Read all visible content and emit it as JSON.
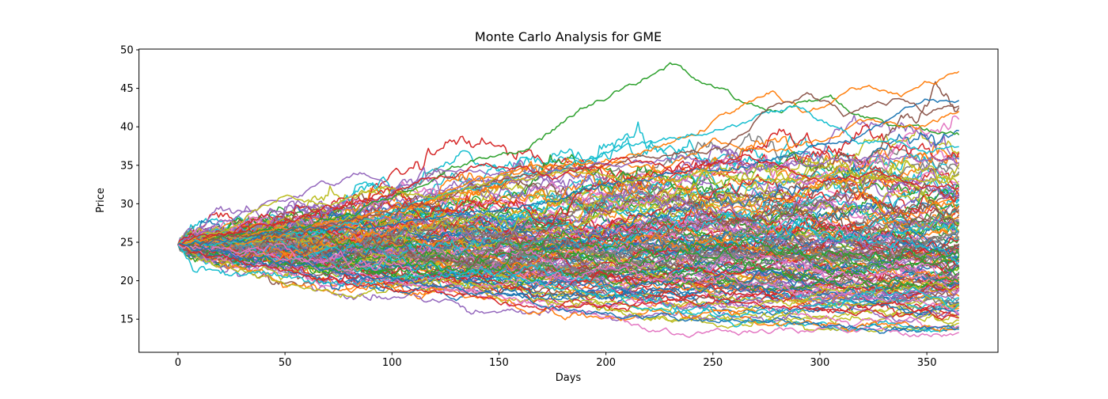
{
  "chart_data": {
    "type": "line",
    "title": "Monte Carlo Analysis for GME",
    "xlabel": "Days",
    "ylabel": "Price",
    "xlim": [
      -18.25,
      383.25
    ],
    "ylim": [
      10.7,
      50.1
    ],
    "xticks": [
      0,
      50,
      100,
      150,
      200,
      250,
      300,
      350
    ],
    "yticks": [
      15,
      20,
      25,
      30,
      35,
      40,
      45,
      50
    ],
    "grid": false,
    "legend": false,
    "days": 365,
    "start_price": 24.7,
    "num_paths": 162,
    "axis_color": "#000000",
    "background_color": "#ffffff",
    "color_cycle": [
      "#1f77b4",
      "#ff7f0e",
      "#2ca02c",
      "#d62728",
      "#9467bd",
      "#8c564b",
      "#e377c2",
      "#7f7f7f",
      "#bcbd22",
      "#17becf"
    ],
    "simulation": {
      "seed": 7,
      "background_paths": 150,
      "daily_volatility": 0.0125,
      "daily_drift": -8e-05,
      "reflect_low": 13.3,
      "reflect_high": 46.0,
      "noise_ar": 0.86,
      "noise_innovation": 0.5
    },
    "featured_paths": [
      {
        "name": "green-peak",
        "color": "#2ca02c",
        "points": [
          [
            0,
            24.7
          ],
          [
            30,
            26.2
          ],
          [
            60,
            27.2
          ],
          [
            100,
            30.5
          ],
          [
            125,
            34.8
          ],
          [
            150,
            36.2
          ],
          [
            170,
            38.5
          ],
          [
            190,
            42.5
          ],
          [
            205,
            44.8
          ],
          [
            218,
            46.5
          ],
          [
            230,
            48.3
          ],
          [
            240,
            46.5
          ],
          [
            252,
            44.8
          ],
          [
            265,
            43.2
          ],
          [
            280,
            42.0
          ],
          [
            295,
            43.2
          ],
          [
            305,
            44.0
          ],
          [
            318,
            41.5
          ],
          [
            332,
            40.3
          ],
          [
            348,
            39.5
          ],
          [
            365,
            39.0
          ]
        ]
      },
      {
        "name": "orange-top",
        "color": "#ff7f0e",
        "points": [
          [
            0,
            24.7
          ],
          [
            40,
            25.5
          ],
          [
            80,
            27.5
          ],
          [
            120,
            30.5
          ],
          [
            145,
            33.5
          ],
          [
            165,
            35.5
          ],
          [
            185,
            34.0
          ],
          [
            205,
            35.5
          ],
          [
            225,
            37.5
          ],
          [
            245,
            40.0
          ],
          [
            262,
            42.0
          ],
          [
            278,
            44.5
          ],
          [
            292,
            42.0
          ],
          [
            308,
            43.5
          ],
          [
            322,
            45.5
          ],
          [
            338,
            43.8
          ],
          [
            352,
            45.8
          ],
          [
            365,
            47.0
          ]
        ]
      },
      {
        "name": "orange-second",
        "color": "#ff7f0e",
        "points": [
          [
            0,
            24.7
          ],
          [
            50,
            26.5
          ],
          [
            100,
            29.0
          ],
          [
            140,
            31.5
          ],
          [
            175,
            34.5
          ],
          [
            200,
            36.0
          ],
          [
            225,
            34.5
          ],
          [
            250,
            38.0
          ],
          [
            275,
            36.5
          ],
          [
            300,
            38.5
          ],
          [
            325,
            41.0
          ],
          [
            345,
            39.8
          ],
          [
            365,
            42.3
          ]
        ]
      },
      {
        "name": "cyan-high",
        "color": "#17becf",
        "points": [
          [
            0,
            24.7
          ],
          [
            60,
            26.0
          ],
          [
            110,
            29.5
          ],
          [
            150,
            33.0
          ],
          [
            180,
            35.0
          ],
          [
            205,
            37.0
          ],
          [
            230,
            38.5
          ],
          [
            255,
            40.0
          ],
          [
            275,
            41.5
          ],
          [
            290,
            42.8
          ],
          [
            305,
            40.0
          ],
          [
            318,
            37.8
          ],
          [
            335,
            38.5
          ],
          [
            350,
            37.0
          ],
          [
            365,
            37.6
          ]
        ]
      },
      {
        "name": "blue-top",
        "color": "#1f77b4",
        "points": [
          [
            0,
            24.7
          ],
          [
            60,
            26.5
          ],
          [
            120,
            28.0
          ],
          [
            170,
            30.5
          ],
          [
            220,
            33.5
          ],
          [
            260,
            35.0
          ],
          [
            290,
            36.5
          ],
          [
            315,
            38.5
          ],
          [
            335,
            41.0
          ],
          [
            352,
            43.5
          ],
          [
            365,
            43.0
          ]
        ]
      },
      {
        "name": "brown-high",
        "color": "#8c564b",
        "points": [
          [
            0,
            24.7
          ],
          [
            80,
            27.5
          ],
          [
            140,
            32.0
          ],
          [
            180,
            34.5
          ],
          [
            220,
            36.0
          ],
          [
            255,
            37.5
          ],
          [
            278,
            43.0
          ],
          [
            295,
            44.0
          ],
          [
            312,
            41.5
          ],
          [
            335,
            43.5
          ],
          [
            350,
            42.0
          ],
          [
            365,
            42.8
          ]
        ]
      },
      {
        "name": "purple-early-leader",
        "color": "#9467bd",
        "points": [
          [
            0,
            24.7
          ],
          [
            20,
            28.0
          ],
          [
            45,
            30.5
          ],
          [
            65,
            31.8
          ],
          [
            85,
            33.8
          ],
          [
            100,
            32.0
          ],
          [
            130,
            34.8
          ],
          [
            160,
            33.0
          ],
          [
            195,
            35.0
          ],
          [
            235,
            36.0
          ],
          [
            275,
            34.5
          ],
          [
            315,
            35.5
          ],
          [
            340,
            36.0
          ],
          [
            365,
            35.6
          ]
        ]
      },
      {
        "name": "olive-early",
        "color": "#bcbd22",
        "points": [
          [
            0,
            24.7
          ],
          [
            30,
            28.0
          ],
          [
            50,
            31.2
          ],
          [
            70,
            29.8
          ],
          [
            95,
            32.0
          ],
          [
            120,
            30.8
          ],
          [
            150,
            33.0
          ],
          [
            180,
            34.3
          ],
          [
            215,
            32.8
          ],
          [
            250,
            34.0
          ],
          [
            285,
            32.8
          ],
          [
            320,
            33.8
          ],
          [
            345,
            33.0
          ],
          [
            365,
            33.6
          ]
        ]
      },
      {
        "name": "red-mid",
        "color": "#d62728",
        "points": [
          [
            0,
            24.7
          ],
          [
            40,
            27.0
          ],
          [
            80,
            30.0
          ],
          [
            115,
            32.8
          ],
          [
            145,
            35.3
          ],
          [
            175,
            33.5
          ],
          [
            205,
            35.8
          ],
          [
            235,
            33.8
          ],
          [
            265,
            36.3
          ],
          [
            295,
            33.0
          ],
          [
            325,
            33.8
          ],
          [
            365,
            31.8
          ]
        ]
      },
      {
        "name": "red-low",
        "color": "#d62728",
        "points": [
          [
            0,
            24.7
          ],
          [
            40,
            21.5
          ],
          [
            80,
            19.8
          ],
          [
            120,
            18.3
          ],
          [
            155,
            17.0
          ],
          [
            190,
            16.6
          ],
          [
            225,
            17.0
          ],
          [
            255,
            17.6
          ],
          [
            285,
            16.5
          ],
          [
            315,
            16.0
          ],
          [
            335,
            17.0
          ],
          [
            352,
            15.6
          ],
          [
            365,
            15.3
          ]
        ]
      },
      {
        "name": "pink-low",
        "color": "#e377c2",
        "points": [
          [
            0,
            24.7
          ],
          [
            50,
            23.0
          ],
          [
            100,
            20.0
          ],
          [
            145,
            18.0
          ],
          [
            180,
            16.0
          ],
          [
            210,
            14.5
          ],
          [
            235,
            13.0
          ],
          [
            262,
            13.2
          ],
          [
            290,
            13.6
          ],
          [
            318,
            13.8
          ],
          [
            345,
            12.9
          ],
          [
            365,
            13.1
          ]
        ]
      },
      {
        "name": "blue-low",
        "color": "#1f77b4",
        "points": [
          [
            0,
            24.7
          ],
          [
            60,
            22.0
          ],
          [
            120,
            19.2
          ],
          [
            160,
            17.6
          ],
          [
            200,
            15.3
          ],
          [
            240,
            15.1
          ],
          [
            280,
            14.8
          ],
          [
            310,
            14.2
          ],
          [
            332,
            13.3
          ],
          [
            348,
            13.9
          ],
          [
            365,
            13.6
          ]
        ]
      }
    ]
  }
}
